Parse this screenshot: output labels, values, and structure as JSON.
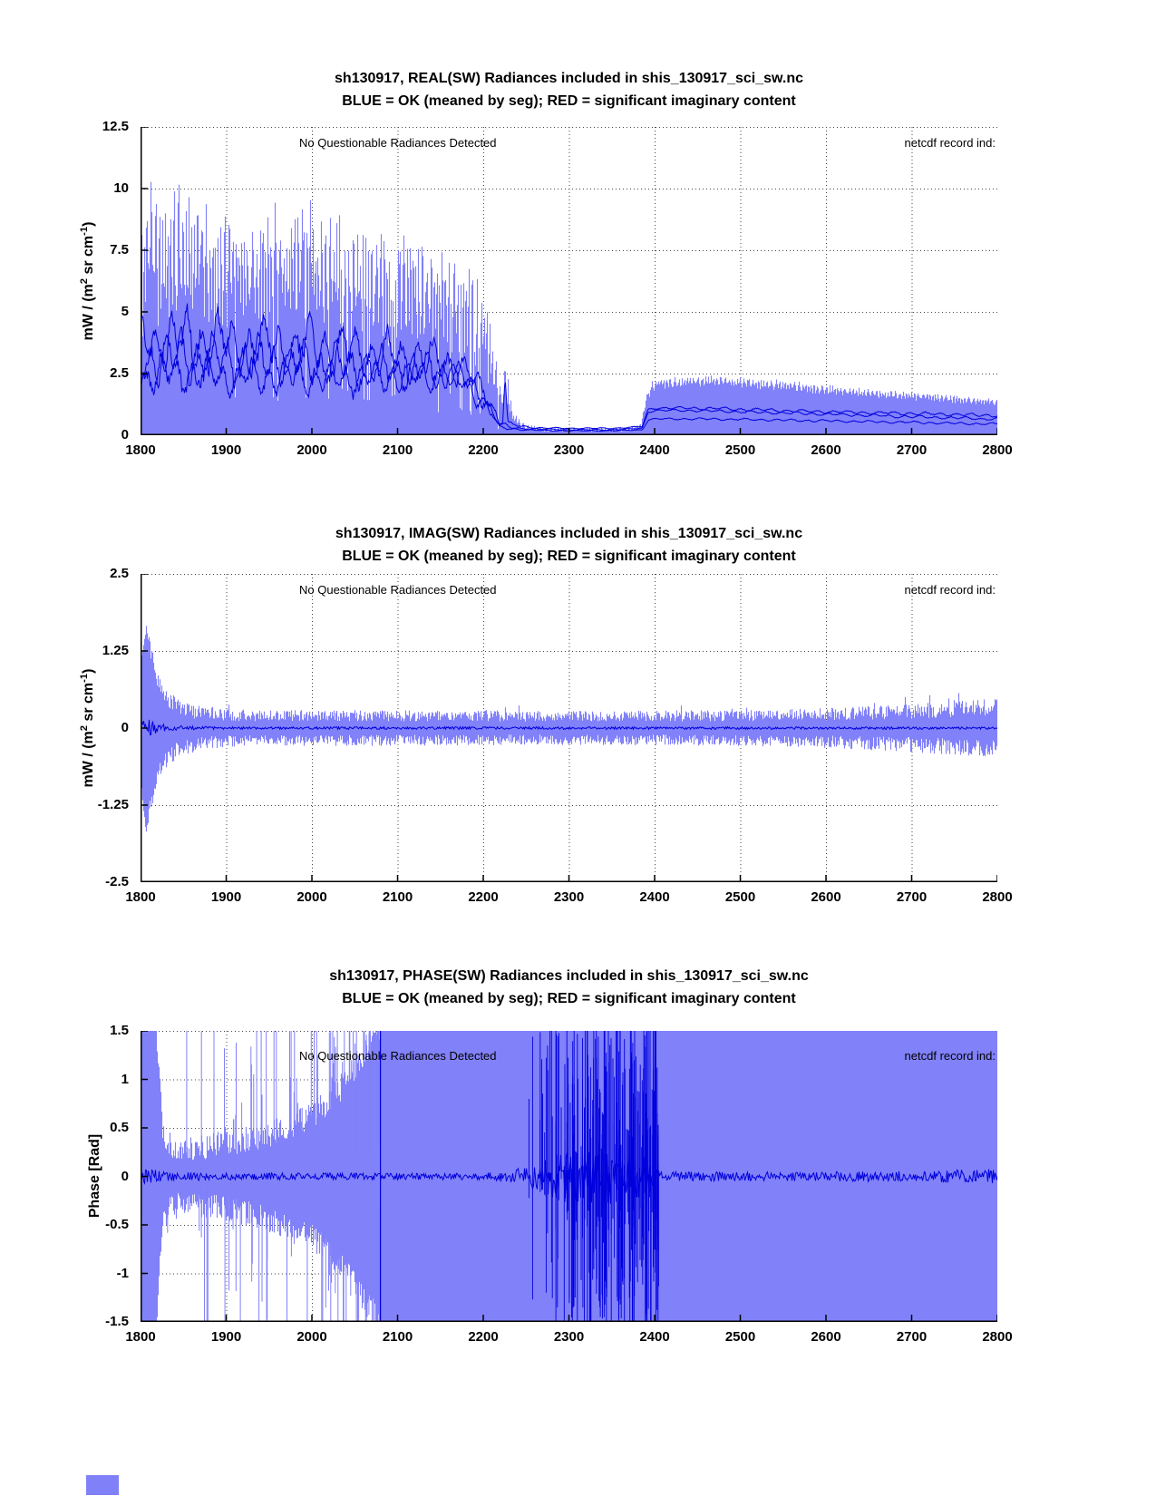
{
  "colors": {
    "fill": "#8181f9",
    "line": "#0000dd",
    "grid": "#444444",
    "axis": "#000000",
    "background": "#ffffff"
  },
  "misc": {
    "corner_swatch_color": "#8080f8"
  },
  "chart_data": [
    {
      "type": "area",
      "title": "sh130917, REAL(SW) Radiances included in shis_130917_sci_sw.nc",
      "subtitle": "BLUE = OK (meaned by seg); RED = significant imaginary content",
      "annotation_left": "No Questionable Radiances Detected",
      "annotation_right": "netcdf record ind:",
      "xlabel": "",
      "ylabel": "mW / (m^2 sr cm^-1)",
      "ylabel_parts": [
        {
          "t": "mW / (m"
        },
        {
          "t": "2",
          "sup": true
        },
        {
          "t": " sr cm"
        },
        {
          "t": "-1",
          "sup": true
        },
        {
          "t": ")"
        }
      ],
      "xlim": [
        1800,
        2800
      ],
      "ylim": [
        0,
        12.5
      ],
      "xtick_labels": [
        "1800",
        "1900",
        "2000",
        "2100",
        "2200",
        "2300",
        "2400",
        "2500",
        "2600",
        "2700",
        "2800"
      ],
      "ytick_labels": [
        "12.5",
        "10",
        "7.5",
        "5",
        "2.5",
        "0"
      ],
      "grid": "dotted",
      "legend": {
        "blue": "OK (meaned by seg)",
        "red": "significant imaginary content"
      },
      "series": {
        "envelope": {
          "x": [
            1800,
            1808,
            1816,
            1824,
            1832,
            1840,
            1850,
            1860,
            1870,
            1880,
            1890,
            1900,
            1912,
            1924,
            1936,
            1948,
            1960,
            1972,
            1984,
            1996,
            2008,
            2020,
            2032,
            2044,
            2056,
            2068,
            2080,
            2092,
            2104,
            2116,
            2128,
            2140,
            2152,
            2164,
            2176,
            2188,
            2200,
            2208,
            2216,
            2221,
            2225,
            2229,
            2235,
            2242,
            2252,
            2270,
            2300,
            2340,
            2370,
            2384,
            2390,
            2396,
            2404,
            2430,
            2460,
            2500,
            2540,
            2580,
            2620,
            2660,
            2700,
            2740,
            2770,
            2800
          ],
          "hi": [
            7.5,
            9.4,
            9.5,
            8.2,
            8.8,
            9.3,
            9.0,
            8.8,
            9.2,
            8.2,
            7.8,
            8.8,
            9.0,
            7.7,
            8.0,
            8.4,
            8.6,
            8.2,
            8.9,
            9.1,
            7.9,
            8.2,
            8.5,
            7.6,
            8.0,
            7.3,
            7.6,
            7.1,
            8.1,
            7.8,
            7.3,
            7.5,
            6.9,
            7.0,
            6.6,
            6.3,
            5.6,
            4.4,
            2.6,
            1.6,
            2.9,
            2.0,
            0.9,
            0.55,
            0.38,
            0.3,
            0.28,
            0.28,
            0.3,
            0.5,
            1.6,
            2.1,
            2.25,
            2.3,
            2.35,
            2.3,
            2.2,
            2.05,
            1.9,
            1.8,
            1.7,
            1.6,
            1.5,
            1.45
          ],
          "lo": [
            4.0,
            5.0,
            5.2,
            4.4,
            4.7,
            5.0,
            4.8,
            4.6,
            4.9,
            4.3,
            4.0,
            4.6,
            4.8,
            4.0,
            4.2,
            4.4,
            4.5,
            4.2,
            4.7,
            4.8,
            4.1,
            4.3,
            4.4,
            3.9,
            4.1,
            3.7,
            3.9,
            3.6,
            4.2,
            4.0,
            3.7,
            3.8,
            3.5,
            3.5,
            3.3,
            3.1,
            2.6,
            2.0,
            1.1,
            0.8,
            1.4,
            0.9,
            0.45,
            0.28,
            0.18,
            0.14,
            0.13,
            0.13,
            0.15,
            0.3,
            1.3,
            1.75,
            1.9,
            1.95,
            2.0,
            1.95,
            1.85,
            1.72,
            1.6,
            1.5,
            1.42,
            1.33,
            1.27,
            1.22
          ]
        },
        "mean_lines": [
          {
            "x": [
              1800,
              1825,
              1850,
              1875,
              1900,
              1925,
              1950,
              1975,
              2000,
              2025,
              2050,
              2075,
              2100,
              2125,
              2150,
              2175,
              2200,
              2210,
              2218,
              2222,
              2225,
              2228,
              2235,
              2245,
              2260,
              2300,
              2350,
              2385,
              2392,
              2400,
              2450,
              2500,
              2600,
              2700,
              2750,
              2800
            ],
            "y": [
              3.7,
              3.9,
              3.9,
              3.8,
              3.8,
              3.7,
              3.7,
              3.6,
              3.6,
              3.5,
              3.4,
              3.3,
              3.2,
              3.1,
              3.0,
              2.7,
              1.8,
              1.2,
              0.55,
              0.5,
              2.4,
              0.5,
              0.42,
              0.36,
              0.3,
              0.28,
              0.28,
              0.35,
              1.05,
              1.1,
              1.1,
              1.05,
              0.95,
              0.88,
              0.84,
              0.8
            ],
            "osc": [
              1.5,
              1.6,
              1.6,
              1.5,
              1.5,
              1.5,
              1.4,
              1.4,
              1.4,
              1.3,
              1.3,
              1.2,
              1.2,
              1.1,
              1.0,
              0.8,
              0.5,
              0.35,
              0.15,
              0.12,
              0.1,
              0.1,
              0.07,
              0.05,
              0.04,
              0.03,
              0.03,
              0.03,
              0.05,
              0.06,
              0.07,
              0.08,
              0.08,
              0.08,
              0.08,
              0.08
            ]
          },
          {
            "x": [
              1800,
              1825,
              1850,
              1875,
              1900,
              1925,
              1950,
              1975,
              2000,
              2025,
              2050,
              2075,
              2100,
              2125,
              2150,
              2175,
              2200,
              2210,
              2218,
              2222,
              2225,
              2228,
              2235,
              2245,
              2260,
              2300,
              2350,
              2385,
              2392,
              2400,
              2450,
              2500,
              2600,
              2700,
              2750,
              2800
            ],
            "y": [
              3.0,
              3.2,
              3.2,
              3.1,
              3.1,
              3.0,
              3.0,
              2.95,
              2.9,
              2.85,
              2.8,
              2.75,
              2.7,
              2.65,
              2.6,
              2.4,
              1.5,
              1.0,
              0.45,
              0.4,
              0.4,
              0.35,
              0.3,
              0.27,
              0.25,
              0.22,
              0.22,
              0.28,
              0.95,
              1.0,
              1.0,
              0.95,
              0.85,
              0.75,
              0.7,
              0.65
            ],
            "osc": [
              1.2,
              1.3,
              1.3,
              1.25,
              1.2,
              1.2,
              1.15,
              1.1,
              1.1,
              1.05,
              1.0,
              1.0,
              0.95,
              0.9,
              0.85,
              0.7,
              0.45,
              0.3,
              0.12,
              0.1,
              0.1,
              0.1,
              0.06,
              0.04,
              0.035,
              0.025,
              0.025,
              0.025,
              0.04,
              0.05,
              0.06,
              0.07,
              0.07,
              0.07,
              0.07,
              0.07
            ]
          },
          {
            "x": [
              1800,
              1825,
              1850,
              1875,
              1900,
              1925,
              1950,
              1975,
              2000,
              2025,
              2050,
              2075,
              2100,
              2125,
              2150,
              2175,
              2200,
              2210,
              2218,
              2222,
              2225,
              2228,
              2235,
              2245,
              2260,
              2300,
              2350,
              2385,
              2392,
              2400,
              2450,
              2500,
              2600,
              2700,
              2750,
              2800
            ],
            "y": [
              2.3,
              2.5,
              2.5,
              2.45,
              2.4,
              2.4,
              2.35,
              2.35,
              2.3,
              2.3,
              2.3,
              2.35,
              2.4,
              2.4,
              2.4,
              2.2,
              1.3,
              0.85,
              0.32,
              0.3,
              0.3,
              0.28,
              0.25,
              0.22,
              0.2,
              0.18,
              0.18,
              0.22,
              0.62,
              0.66,
              0.66,
              0.64,
              0.58,
              0.52,
              0.48,
              0.45
            ],
            "osc": [
              0.9,
              1.0,
              1.0,
              0.95,
              0.95,
              0.9,
              0.9,
              0.85,
              0.85,
              0.8,
              0.8,
              0.8,
              0.75,
              0.75,
              0.7,
              0.6,
              0.4,
              0.25,
              0.1,
              0.08,
              0.08,
              0.08,
              0.05,
              0.035,
              0.03,
              0.02,
              0.02,
              0.02,
              0.035,
              0.04,
              0.05,
              0.06,
              0.06,
              0.06,
              0.06,
              0.06
            ]
          }
        ]
      }
    },
    {
      "type": "area",
      "title": "sh130917, IMAG(SW) Radiances included in shis_130917_sci_sw.nc",
      "subtitle": "BLUE = OK (meaned by seg); RED = significant imaginary content",
      "annotation_left": "No Questionable Radiances Detected",
      "annotation_right": "netcdf record ind:",
      "xlabel": "",
      "ylabel": "mW / (m^2 sr cm^-1)",
      "ylabel_parts": [
        {
          "t": "mW / (m"
        },
        {
          "t": "2",
          "sup": true
        },
        {
          "t": " sr cm"
        },
        {
          "t": "-1",
          "sup": true
        },
        {
          "t": ")"
        }
      ],
      "xlim": [
        1800,
        2800
      ],
      "ylim": [
        -2.5,
        2.5
      ],
      "xtick_labels": [
        "1800",
        "1900",
        "2000",
        "2100",
        "2200",
        "2300",
        "2400",
        "2500",
        "2600",
        "2700",
        "2800"
      ],
      "ytick_labels": [
        "2.5",
        "1.25",
        "0",
        "-1.25",
        "-2.5"
      ],
      "grid": "dotted",
      "series": {
        "envelope": {
          "x": [
            1800,
            1802,
            1805,
            1808,
            1812,
            1816,
            1820,
            1826,
            1832,
            1840,
            1850,
            1862,
            1876,
            1892,
            1910,
            1940,
            1980,
            2050,
            2150,
            2250,
            2350,
            2450,
            2550,
            2620,
            2680,
            2730,
            2770,
            2800
          ],
          "hw": [
            0.85,
            1.25,
            1.62,
            1.5,
            1.2,
            0.95,
            0.75,
            0.58,
            0.47,
            0.38,
            0.31,
            0.27,
            0.24,
            0.22,
            0.21,
            0.2,
            0.2,
            0.2,
            0.2,
            0.19,
            0.19,
            0.2,
            0.21,
            0.23,
            0.26,
            0.29,
            0.32,
            0.34
          ]
        },
        "mean_lines": [
          {
            "noise_x": [
              1800,
              1806,
              1815,
              1830,
              1860,
              1900,
              2800
            ],
            "noise_amp": [
              0.12,
              0.18,
              0.1,
              0.05,
              0.03,
              0.02,
              0.02
            ]
          }
        ]
      }
    },
    {
      "type": "area",
      "title": "sh130917, PHASE(SW) Radiances included in shis_130917_sci_sw.nc",
      "subtitle": "BLUE = OK (meaned by seg); RED = significant imaginary content",
      "annotation_left": "No Questionable Radiances Detected",
      "annotation_right": "netcdf record ind:",
      "xlabel": "",
      "ylabel": "Phase [Rad]",
      "ylabel_parts": [
        {
          "t": "Phase [Rad]"
        }
      ],
      "xlim": [
        1800,
        2800
      ],
      "ylim": [
        -1.5,
        1.5
      ],
      "xtick_labels": [
        "1800",
        "1900",
        "2000",
        "2100",
        "2200",
        "2300",
        "2400",
        "2500",
        "2600",
        "2700",
        "2800"
      ],
      "ytick_labels": [
        "1.5",
        "1",
        "0.5",
        "0",
        "-0.5",
        "-1",
        "-1.5"
      ],
      "grid": "dotted",
      "series": {
        "envelope": {
          "x": [
            1800,
            1818,
            1822,
            1826,
            1832,
            1845,
            1860,
            1880,
            1900,
            1925,
            1950,
            1975,
            2000,
            2020,
            2040,
            2060,
            2075,
            2085,
            2095,
            2800
          ],
          "hw": [
            1.58,
            1.58,
            0.9,
            0.45,
            0.34,
            0.29,
            0.29,
            0.31,
            0.34,
            0.38,
            0.44,
            0.52,
            0.63,
            0.78,
            0.97,
            1.25,
            1.45,
            1.58,
            1.58,
            1.58
          ]
        },
        "spikes": {
          "light_region": [
            1822,
            2098
          ],
          "light_count": 130,
          "dark_cluster_region": [
            2240,
            2405
          ],
          "dark_cluster_count": 240,
          "isolated_dark_spike_x": 2080
        },
        "mean_lines": [
          {
            "noise_x": [
              1800,
              1830,
              1900,
              2200,
              2235,
              2260,
              2290,
              2330,
              2370,
              2395,
              2410,
              2500,
              2600,
              2700,
              2800
            ],
            "noise_amp": [
              0.1,
              0.05,
              0.035,
              0.035,
              0.07,
              0.14,
              0.25,
              0.3,
              0.28,
              0.15,
              0.05,
              0.045,
              0.05,
              0.055,
              0.08
            ]
          }
        ]
      }
    }
  ]
}
